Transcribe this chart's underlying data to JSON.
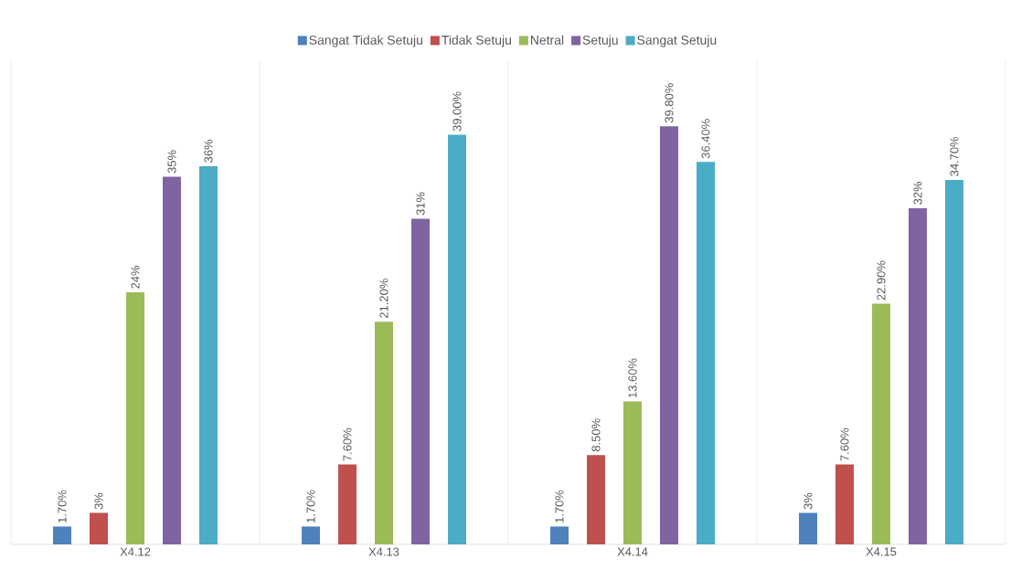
{
  "chart_data": {
    "type": "bar",
    "categories": [
      "X4.12",
      "X4.13",
      "X4.14",
      "X4.15"
    ],
    "series": [
      {
        "name": "Sangat Tidak Setuju",
        "color": "#4f81bd",
        "values": [
          1.7,
          1.7,
          1.7,
          3
        ],
        "value_labels": [
          "1.70%",
          "1.70%",
          "1.70%",
          "3%"
        ]
      },
      {
        "name": "Tidak Setuju",
        "color": "#c0504d",
        "values": [
          3,
          7.6,
          8.5,
          7.6
        ],
        "value_labels": [
          "3%",
          "7.60%",
          "8.50%",
          "7.60%"
        ]
      },
      {
        "name": "Netral",
        "color": "#9bbb59",
        "values": [
          24,
          21.2,
          13.6,
          22.9
        ],
        "value_labels": [
          "24%",
          "21.20%",
          "13.60%",
          "22.90%"
        ]
      },
      {
        "name": "Setuju",
        "color": "#8064a2",
        "values": [
          35,
          31,
          39.8,
          32
        ],
        "value_labels": [
          "35%",
          "31%",
          "39.80%",
          "32%"
        ]
      },
      {
        "name": "Sangat Setuju",
        "color": "#4bacc6",
        "values": [
          36,
          39,
          36.4,
          34.7
        ],
        "value_labels": [
          "36%",
          "39.00%",
          "36.40%",
          "34.70%"
        ]
      }
    ],
    "legend": "top"
  }
}
